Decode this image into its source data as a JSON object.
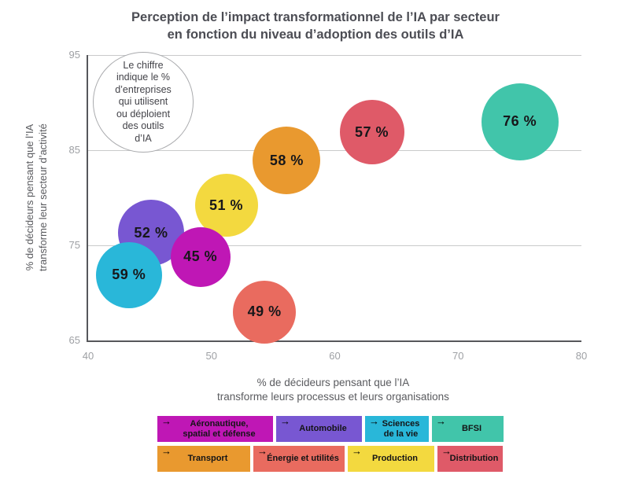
{
  "header": {
    "title_line1": "Perception de l’impact transformationnel de l’IA par secteur",
    "title_line2": "en fonction du niveau d’adoption des outils d’IA"
  },
  "annotation": {
    "lines": [
      "Le chiffre",
      "indique le %",
      "d’entreprises",
      "qui utilisent",
      "ou déploient",
      "des outils",
      "d’IA"
    ]
  },
  "chart_data": {
    "type": "scatter",
    "title": "Perception de l’impact transformationnel de l’IA par secteur en fonction du niveau d’adoption des outils d’IA",
    "xlabel_line1": "% de décideurs pensant que l’IA",
    "xlabel_line2": "transforme leurs processus et leurs organisations",
    "ylabel_line1": "% de décideurs pensant que l’IA",
    "ylabel_line2": "transforme leur secteur d’activité",
    "xlim": [
      40,
      80
    ],
    "ylim": [
      65,
      95
    ],
    "xticks": [
      40,
      50,
      60,
      70,
      80
    ],
    "yticks": [
      95,
      85,
      75,
      65
    ],
    "grid": "horizontal gridlines only",
    "legend_position": "bottom",
    "bubble_value_meaning": "% d’entreprises qui utilisent ou déploient des outils d’IA",
    "bubbles": [
      {
        "sector": "automobile",
        "name": "Automobile",
        "x": 45.1,
        "y": 76.3,
        "adoption_pct": 52,
        "label": "52 %",
        "color": "#7857d2",
        "radius_px": 42
      },
      {
        "sector": "production",
        "name": "Production",
        "x": 51.2,
        "y": 79.2,
        "adoption_pct": 51,
        "label": "51 %",
        "color": "#f3d93f",
        "radius_px": 40
      },
      {
        "sector": "aeronautique",
        "name": "Aéronautique, spatial et défense",
        "x": 49.1,
        "y": 73.8,
        "adoption_pct": 45,
        "label": "45 %",
        "color": "#bf17b5",
        "radius_px": 38
      },
      {
        "sector": "sciences",
        "name": "Sciences de la vie",
        "x": 43.3,
        "y": 71.9,
        "adoption_pct": 59,
        "label": "59 %",
        "color": "#29b7d9",
        "radius_px": 42
      },
      {
        "sector": "transport",
        "name": "Transport",
        "x": 56.1,
        "y": 83.9,
        "adoption_pct": 58,
        "label": "58 %",
        "color": "#e9992f",
        "radius_px": 43
      },
      {
        "sector": "distribution",
        "name": "Distribution",
        "x": 63.0,
        "y": 86.9,
        "adoption_pct": 57,
        "label": "57 %",
        "color": "#df5a68",
        "radius_px": 41
      },
      {
        "sector": "energie",
        "name": "Énergie et utilités",
        "x": 54.3,
        "y": 68.0,
        "adoption_pct": 49,
        "label": "49 %",
        "color": "#e96b5f",
        "radius_px": 40
      },
      {
        "sector": "bfsi",
        "name": "BFSI",
        "x": 75.0,
        "y": 88.0,
        "adoption_pct": 76,
        "label": "76 %",
        "color": "#41c5aa",
        "radius_px": 49
      }
    ]
  },
  "legend": {
    "arrow_icon": "→",
    "rows": [
      {
        "items": [
          {
            "sector": "aeronautique",
            "label": "Aéronautique,\nspatial et défense",
            "color": "#bf17b5"
          },
          {
            "sector": "automobile",
            "label": "Automobile",
            "color": "#7857d2"
          },
          {
            "sector": "sciences",
            "label": "Sciences\nde la vie",
            "color": "#29b7d9"
          },
          {
            "sector": "bfsi",
            "label": "BFSI",
            "color": "#41c5aa"
          }
        ]
      },
      {
        "items": [
          {
            "sector": "transport",
            "label": "Transport",
            "color": "#e9992f"
          },
          {
            "sector": "energie",
            "label": "Énergie et utilités",
            "color": "#e96b5f"
          },
          {
            "sector": "production",
            "label": "Production",
            "color": "#f3d93f"
          },
          {
            "sector": "distribution",
            "label": "Distribution",
            "color": "#df5a68"
          }
        ]
      }
    ]
  }
}
